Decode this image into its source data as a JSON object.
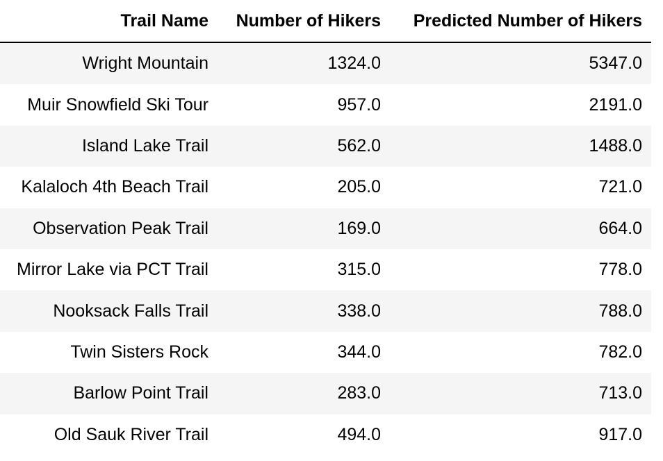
{
  "table": {
    "columns": [
      "Trail Name",
      "Number of Hikers",
      "Predicted Number of Hikers"
    ],
    "rows": [
      {
        "trail_name": "Wright Mountain",
        "hikers": "1324.0",
        "predicted": "5347.0"
      },
      {
        "trail_name": "Muir Snowfield Ski Tour",
        "hikers": "957.0",
        "predicted": "2191.0"
      },
      {
        "trail_name": "Island Lake Trail",
        "hikers": "562.0",
        "predicted": "1488.0"
      },
      {
        "trail_name": "Kalaloch 4th Beach Trail",
        "hikers": "205.0",
        "predicted": "721.0"
      },
      {
        "trail_name": "Observation Peak Trail",
        "hikers": "169.0",
        "predicted": "664.0"
      },
      {
        "trail_name": "Mirror Lake via PCT Trail",
        "hikers": "315.0",
        "predicted": "778.0"
      },
      {
        "trail_name": "Nooksack Falls Trail",
        "hikers": "338.0",
        "predicted": "788.0"
      },
      {
        "trail_name": "Twin Sisters Rock",
        "hikers": "344.0",
        "predicted": "782.0"
      },
      {
        "trail_name": "Barlow Point Trail",
        "hikers": "283.0",
        "predicted": "713.0"
      },
      {
        "trail_name": "Old Sauk River Trail",
        "hikers": "494.0",
        "predicted": "917.0"
      }
    ]
  }
}
